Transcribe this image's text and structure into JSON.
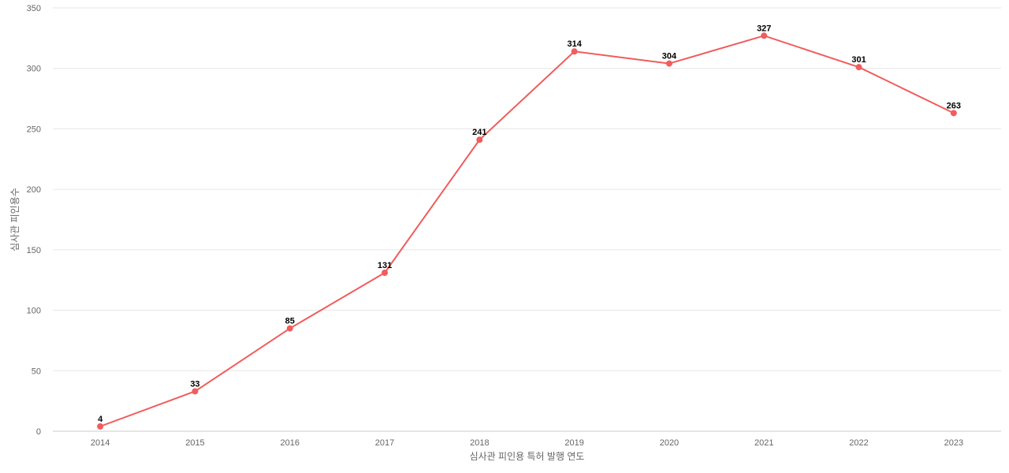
{
  "chart_data": {
    "type": "line",
    "title": "",
    "xlabel": "심사관 피인용 특허 발행 연도",
    "ylabel": "심사관 피인용수",
    "categories": [
      "2014",
      "2015",
      "2016",
      "2017",
      "2018",
      "2019",
      "2020",
      "2021",
      "2022",
      "2023"
    ],
    "series": [
      {
        "values": [
          4,
          33,
          85,
          131,
          241,
          314,
          304,
          327,
          301,
          263
        ],
        "color": "#f15c5c"
      }
    ],
    "ylim": [
      0,
      350
    ],
    "yticks": [
      0,
      50,
      100,
      150,
      200,
      250,
      300,
      350
    ],
    "grid": true,
    "data_labels": true,
    "legend": "none"
  }
}
